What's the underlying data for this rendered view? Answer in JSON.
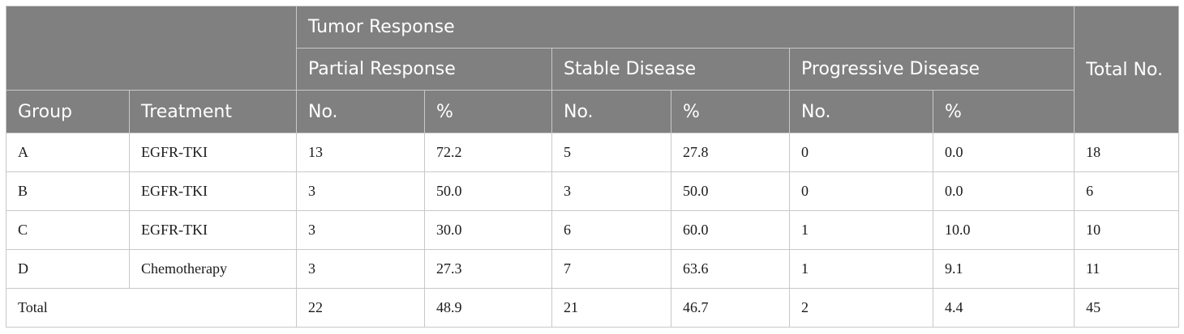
{
  "table": {
    "header": {
      "tumor_response": "Tumor Response",
      "total_no": "Total No.",
      "partial_response": "Partial Response",
      "stable_disease": "Stable Disease",
      "progressive_disease": "Progressive Disease",
      "group": "Group",
      "treatment": "Treatment",
      "no": "No.",
      "pct": "%"
    },
    "rows": [
      {
        "group": "A",
        "treatment": "EGFR-TKI",
        "pr_no": "13",
        "pr_pct": "72.2",
        "sd_no": "5",
        "sd_pct": "27.8",
        "pd_no": "0",
        "pd_pct": "0.0",
        "total": "18"
      },
      {
        "group": "B",
        "treatment": "EGFR-TKI",
        "pr_no": "3",
        "pr_pct": "50.0",
        "sd_no": "3",
        "sd_pct": "50.0",
        "pd_no": "0",
        "pd_pct": "0.0",
        "total": "6"
      },
      {
        "group": "C",
        "treatment": "EGFR-TKI",
        "pr_no": "3",
        "pr_pct": "30.0",
        "sd_no": "6",
        "sd_pct": "60.0",
        "pd_no": "1",
        "pd_pct": "10.0",
        "total": "10"
      },
      {
        "group": "D",
        "treatment": "Chemotherapy",
        "pr_no": "3",
        "pr_pct": "27.3",
        "sd_no": "7",
        "sd_pct": "63.6",
        "pd_no": "1",
        "pd_pct": "9.1",
        "total": "11"
      }
    ],
    "total_row": {
      "label": "Total",
      "pr_no": "22",
      "pr_pct": "48.9",
      "sd_no": "21",
      "sd_pct": "46.7",
      "pd_no": "2",
      "pd_pct": "4.4",
      "total": "45"
    }
  }
}
